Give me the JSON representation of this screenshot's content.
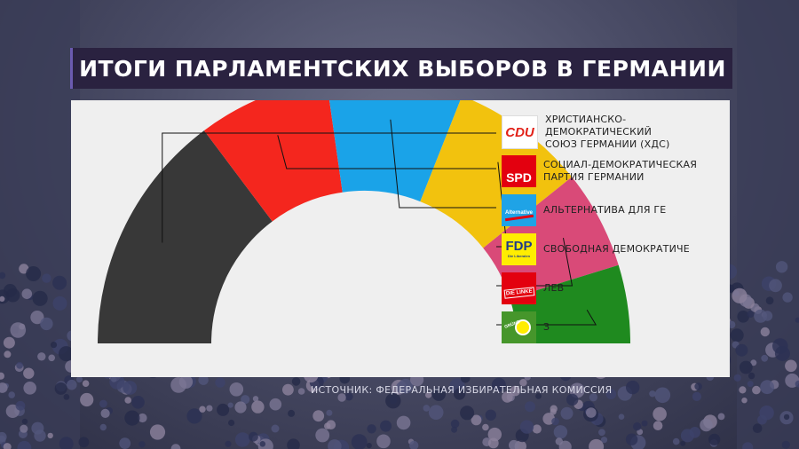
{
  "title": "ИТОГИ ПАРЛАМЕНТСКИХ ВЫБОРОВ В ГЕРМАНИИ",
  "source": "ИСТОЧНИК: ФЕДЕРАЛЬНАЯ ИЗБИРАТЕЛЬНАЯ КОМИССИЯ",
  "chart_data": {
    "type": "pie",
    "variant": "semicircle",
    "categories": [
      "CDU",
      "SPD",
      "AfD",
      "FDP",
      "DIE LINKE",
      "GRÜNE"
    ],
    "values": [
      29.5,
      16,
      16.5,
      16.5,
      12,
      9.5
    ],
    "colors": [
      "#383838",
      "#f4261e",
      "#1aa3e8",
      "#f2c20e",
      "#d94a78",
      "#1f8a1f"
    ],
    "legend": [
      {
        "logo_text": "CDU",
        "line1": "ХРИСТИАНСКО-ДЕМОКРАТИЧЕСКИЙ",
        "line2": "СОЮЗ ГЕРМАНИИ (ХДС)"
      },
      {
        "logo_text": "SPD",
        "line1": "СОЦИАЛ-ДЕМОКРАТИЧЕСКАЯ",
        "line2": "ПАРТИЯ ГЕРМАНИИ"
      },
      {
        "logo_text": "Alternative",
        "line1": "АЛЬТЕРНАТИВА ДЛЯ ГЕ",
        "line2": ""
      },
      {
        "logo_text": "FDP",
        "logo_sub": "Die Liberalen",
        "line1": "СВОБОДНАЯ ДЕМОКРАТИЧЕ",
        "line2": ""
      },
      {
        "logo_text": "DIE LINKE",
        "line1": "ЛЕВ",
        "line2": ""
      },
      {
        "logo_text": "GRÜNE",
        "line1": "З",
        "line2": ""
      }
    ],
    "legend_placement": "right"
  }
}
